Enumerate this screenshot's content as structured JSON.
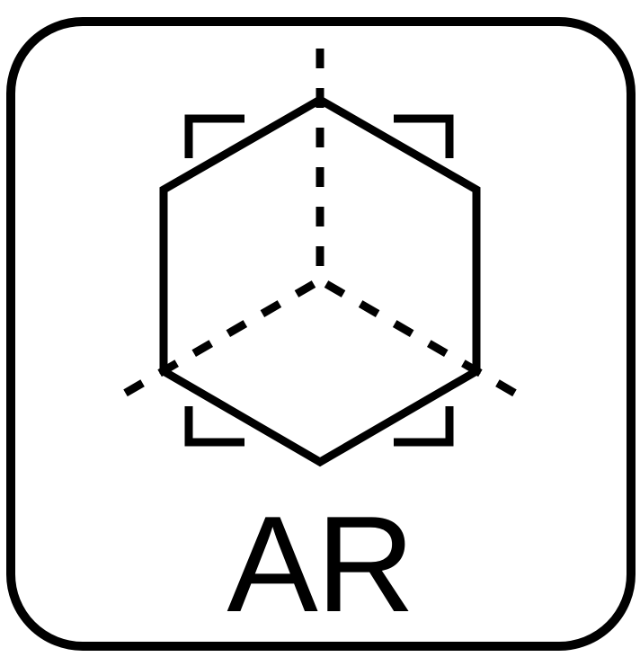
{
  "icon": {
    "name": "augmented-reality-cube-icon",
    "label": "AR",
    "stroke_color": "#000000",
    "background_color": "#ffffff"
  }
}
